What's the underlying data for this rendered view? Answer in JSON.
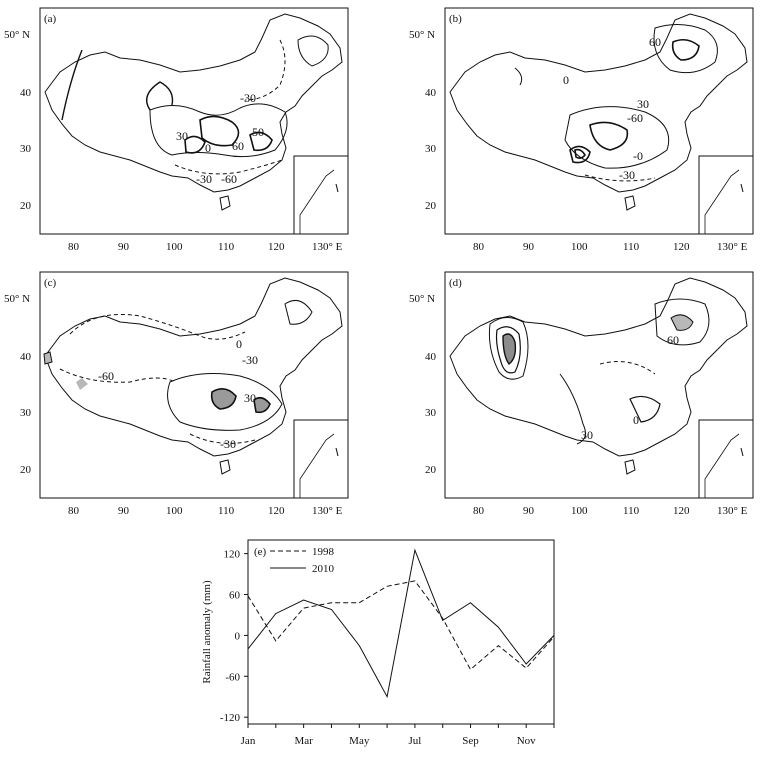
{
  "maps": [
    {
      "label": "(a)",
      "y_ticks": [
        "50° N",
        "40",
        "30",
        "20"
      ],
      "x_ticks": [
        "80",
        "90",
        "100",
        "110",
        "120",
        "130° E"
      ],
      "contour_labels": [
        "-30",
        "30",
        "50",
        "0",
        "60",
        "-30",
        "-60"
      ]
    },
    {
      "label": "(b)",
      "y_ticks": [
        "50° N",
        "40",
        "30",
        "20"
      ],
      "x_ticks": [
        "80",
        "90",
        "100",
        "110",
        "120",
        "130° E"
      ],
      "contour_labels": [
        "60",
        "0",
        "-60",
        "-0",
        "-30",
        "30"
      ]
    },
    {
      "label": "(c)",
      "y_ticks": [
        "50° N",
        "40",
        "30",
        "20"
      ],
      "x_ticks": [
        "80",
        "90",
        "100",
        "110",
        "120",
        "130° E"
      ],
      "contour_labels": [
        "0",
        "-60",
        "-30",
        "30",
        "-30"
      ]
    },
    {
      "label": "(d)",
      "y_ticks": [
        "50° N",
        "40",
        "30",
        "20"
      ],
      "x_ticks": [
        "80",
        "90",
        "100",
        "110",
        "120",
        "130° E"
      ],
      "contour_labels": [
        "60",
        "0",
        "30"
      ]
    }
  ],
  "chart_data": {
    "type": "line",
    "panel_label": "(e)",
    "categories": [
      "Jan",
      "Feb",
      "Mar",
      "Apr",
      "May",
      "Jun",
      "Jul",
      "Aug",
      "Sep",
      "Oct",
      "Nov",
      "Dec"
    ],
    "x_tick_labels": [
      "Jan",
      "Mar",
      "May",
      "Jul",
      "Sep",
      "Nov"
    ],
    "ylabel": "Rainfall  anomaly  (mm)",
    "xlabel": "",
    "ylim": [
      -130,
      140
    ],
    "y_ticks": [
      120,
      60,
      0,
      -60,
      -120
    ],
    "y_tick_labels": [
      "120",
      "60",
      "0",
      "-60",
      "-120"
    ],
    "series": [
      {
        "name": "1998",
        "style": "dashed",
        "values": [
          58,
          -8,
          40,
          48,
          48,
          72,
          80,
          25,
          -50,
          -15,
          -48,
          -2
        ]
      },
      {
        "name": "2010",
        "style": "solid",
        "values": [
          -20,
          32,
          52,
          38,
          -15,
          -90,
          125,
          22,
          48,
          12,
          -42,
          0
        ]
      }
    ],
    "legend": "top-left",
    "grid": false
  }
}
